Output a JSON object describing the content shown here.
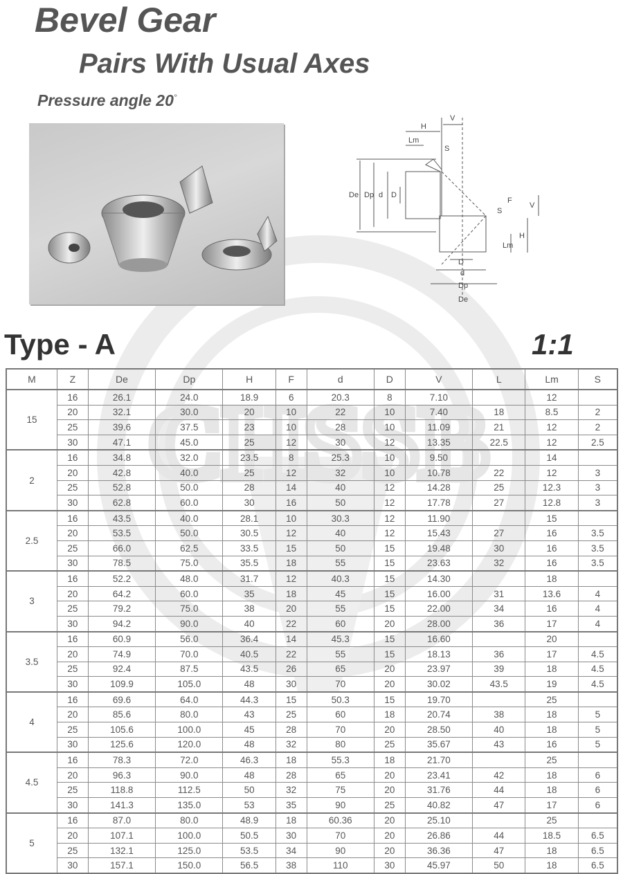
{
  "header": {
    "title": "Bevel Gear",
    "subtitle": "Pairs With Usual Axes",
    "pressure_angle": "Pressure angle 20",
    "degree_mark": "°"
  },
  "section": {
    "type_label": "Type - A",
    "ratio": "1:1"
  },
  "watermark": {
    "text": "CHSSB"
  },
  "diagram": {
    "labels": [
      "H",
      "V",
      "Lm",
      "S",
      "De",
      "Dp",
      "d",
      "D",
      "F",
      "S",
      "V",
      "H",
      "Lm",
      "D",
      "d",
      "Dp",
      "De"
    ]
  },
  "table": {
    "columns": [
      "M",
      "Z",
      "De",
      "Dp",
      "H",
      "F",
      "d",
      "D",
      "V",
      "L",
      "Lm",
      "S"
    ],
    "groups": [
      {
        "m": "15",
        "rows": [
          [
            "16",
            "26.1",
            "24.0",
            "18.9",
            "6",
            "20.3",
            "8",
            "7.10",
            "",
            "12",
            ""
          ],
          [
            "20",
            "32.1",
            "30.0",
            "20",
            "10",
            "22",
            "10",
            "7.40",
            "18",
            "8.5",
            "2"
          ],
          [
            "25",
            "39.6",
            "37.5",
            "23",
            "10",
            "28",
            "10",
            "11.09",
            "21",
            "12",
            "2"
          ],
          [
            "30",
            "47.1",
            "45.0",
            "25",
            "12",
            "30",
            "12",
            "13.35",
            "22.5",
            "12",
            "2.5"
          ]
        ]
      },
      {
        "m": "2",
        "rows": [
          [
            "16",
            "34.8",
            "32.0",
            "23.5",
            "8",
            "25.3",
            "10",
            "9.50",
            "",
            "14",
            ""
          ],
          [
            "20",
            "42.8",
            "40.0",
            "25",
            "12",
            "32",
            "10",
            "10.78",
            "22",
            "12",
            "3"
          ],
          [
            "25",
            "52.8",
            "50.0",
            "28",
            "14",
            "40",
            "12",
            "14.28",
            "25",
            "12.3",
            "3"
          ],
          [
            "30",
            "62.8",
            "60.0",
            "30",
            "16",
            "50",
            "12",
            "17.78",
            "27",
            "12.8",
            "3"
          ]
        ]
      },
      {
        "m": "2.5",
        "rows": [
          [
            "16",
            "43.5",
            "40.0",
            "28.1",
            "10",
            "30.3",
            "12",
            "11.90",
            "",
            "15",
            ""
          ],
          [
            "20",
            "53.5",
            "50.0",
            "30.5",
            "12",
            "40",
            "12",
            "15.43",
            "27",
            "16",
            "3.5"
          ],
          [
            "25",
            "66.0",
            "62.5",
            "33.5",
            "15",
            "50",
            "15",
            "19.48",
            "30",
            "16",
            "3.5"
          ],
          [
            "30",
            "78.5",
            "75.0",
            "35.5",
            "18",
            "55",
            "15",
            "23.63",
            "32",
            "16",
            "3.5"
          ]
        ]
      },
      {
        "m": "3",
        "rows": [
          [
            "16",
            "52.2",
            "48.0",
            "31.7",
            "12",
            "40.3",
            "15",
            "14.30",
            "",
            "18",
            ""
          ],
          [
            "20",
            "64.2",
            "60.0",
            "35",
            "18",
            "45",
            "15",
            "16.00",
            "31",
            "13.6",
            "4"
          ],
          [
            "25",
            "79.2",
            "75.0",
            "38",
            "20",
            "55",
            "15",
            "22.00",
            "34",
            "16",
            "4"
          ],
          [
            "30",
            "94.2",
            "90.0",
            "40",
            "22",
            "60",
            "20",
            "28.00",
            "36",
            "17",
            "4"
          ]
        ]
      },
      {
        "m": "3.5",
        "rows": [
          [
            "16",
            "60.9",
            "56.0",
            "36.4",
            "14",
            "45.3",
            "15",
            "16.60",
            "",
            "20",
            ""
          ],
          [
            "20",
            "74.9",
            "70.0",
            "40.5",
            "22",
            "55",
            "15",
            "18.13",
            "36",
            "17",
            "4.5"
          ],
          [
            "25",
            "92.4",
            "87.5",
            "43.5",
            "26",
            "65",
            "20",
            "23.97",
            "39",
            "18",
            "4.5"
          ],
          [
            "30",
            "109.9",
            "105.0",
            "48",
            "30",
            "70",
            "20",
            "30.02",
            "43.5",
            "19",
            "4.5"
          ]
        ]
      },
      {
        "m": "4",
        "rows": [
          [
            "16",
            "69.6",
            "64.0",
            "44.3",
            "15",
            "50.3",
            "15",
            "19.70",
            "",
            "25",
            ""
          ],
          [
            "20",
            "85.6",
            "80.0",
            "43",
            "25",
            "60",
            "18",
            "20.74",
            "38",
            "18",
            "5"
          ],
          [
            "25",
            "105.6",
            "100.0",
            "45",
            "28",
            "70",
            "20",
            "28.50",
            "40",
            "18",
            "5"
          ],
          [
            "30",
            "125.6",
            "120.0",
            "48",
            "32",
            "80",
            "25",
            "35.67",
            "43",
            "16",
            "5"
          ]
        ]
      },
      {
        "m": "4.5",
        "rows": [
          [
            "16",
            "78.3",
            "72.0",
            "46.3",
            "18",
            "55.3",
            "18",
            "21.70",
            "",
            "25",
            ""
          ],
          [
            "20",
            "96.3",
            "90.0",
            "48",
            "28",
            "65",
            "20",
            "23.41",
            "42",
            "18",
            "6"
          ],
          [
            "25",
            "118.8",
            "112.5",
            "50",
            "32",
            "75",
            "20",
            "31.76",
            "44",
            "18",
            "6"
          ],
          [
            "30",
            "141.3",
            "135.0",
            "53",
            "35",
            "90",
            "25",
            "40.82",
            "47",
            "17",
            "6"
          ]
        ]
      },
      {
        "m": "5",
        "rows": [
          [
            "16",
            "87.0",
            "80.0",
            "48.9",
            "18",
            "60.36",
            "20",
            "25.10",
            "",
            "25",
            ""
          ],
          [
            "20",
            "107.1",
            "100.0",
            "50.5",
            "30",
            "70",
            "20",
            "26.86",
            "44",
            "18.5",
            "6.5"
          ],
          [
            "25",
            "132.1",
            "125.0",
            "53.5",
            "34",
            "90",
            "20",
            "36.36",
            "47",
            "18",
            "6.5"
          ],
          [
            "30",
            "157.1",
            "150.0",
            "56.5",
            "38",
            "110",
            "30",
            "45.97",
            "50",
            "18",
            "6.5"
          ]
        ]
      }
    ]
  }
}
